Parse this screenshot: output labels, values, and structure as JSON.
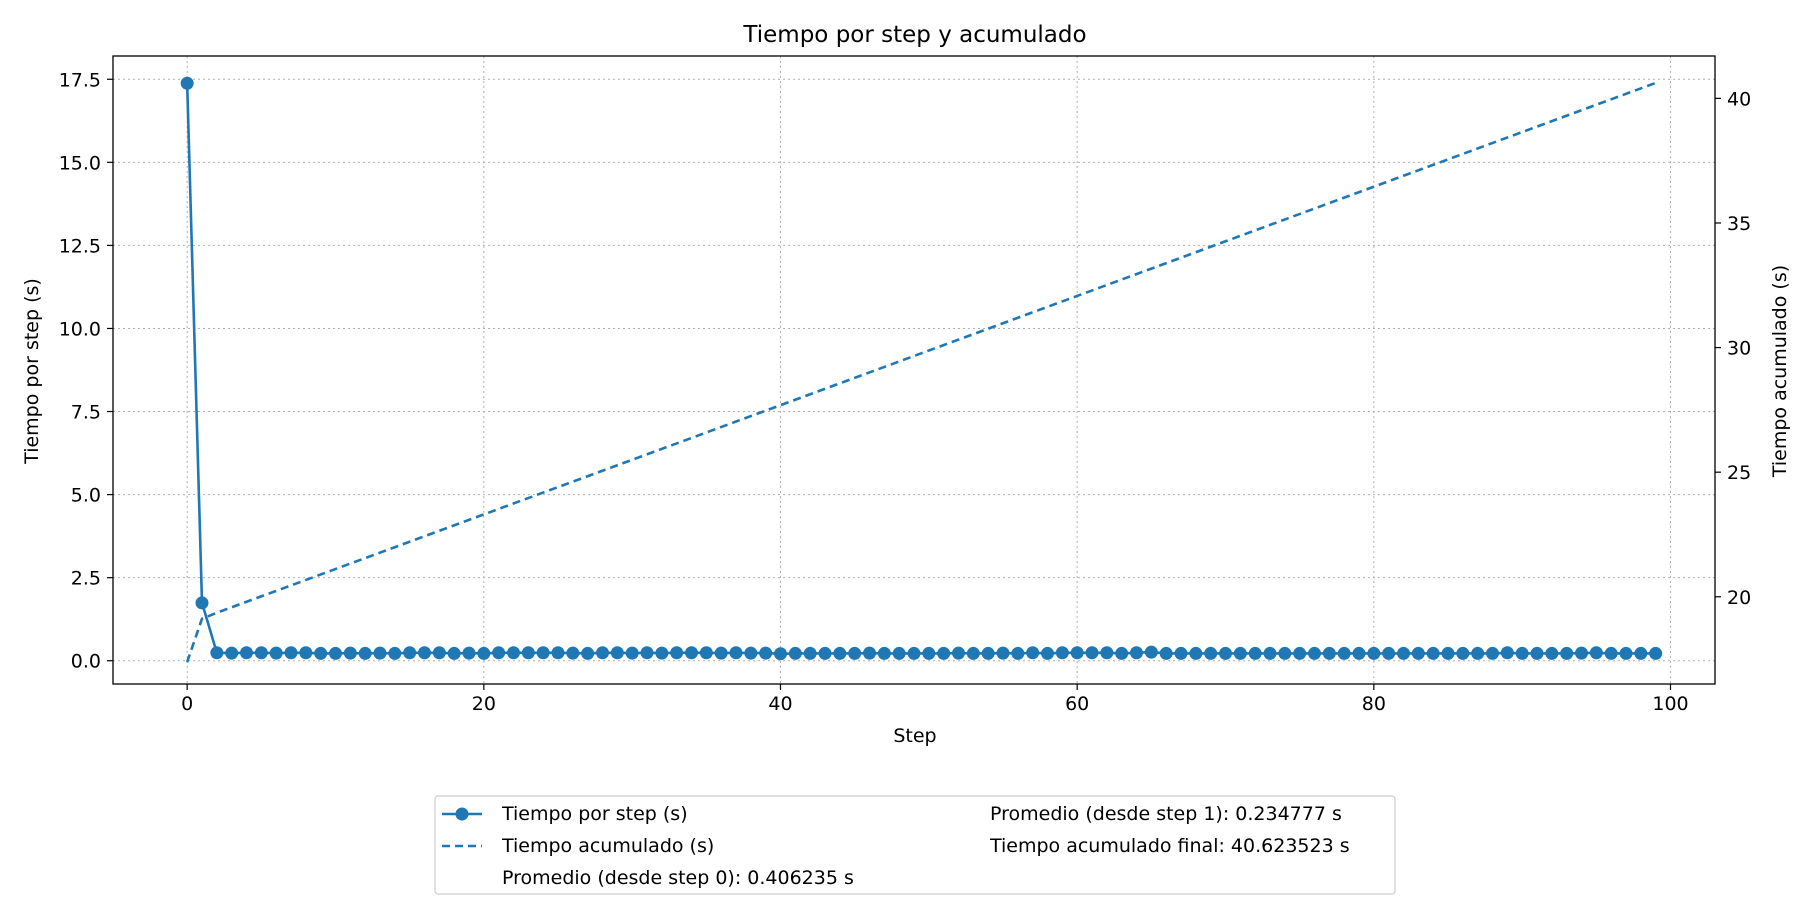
{
  "chart_data": {
    "type": "line",
    "title": "Tiempo por step y acumulado",
    "xlabel": "Step",
    "ylabel_left": "Tiempo por step (s)",
    "ylabel_right": "Tiempo acumulado (s)",
    "xlim": [
      -5,
      103
    ],
    "ylim_left": [
      -0.7,
      18.2
    ],
    "ylim_right": [
      16.5,
      41.7
    ],
    "xticks": [
      0,
      20,
      40,
      60,
      80,
      100
    ],
    "yticks_left": [
      0.0,
      2.5,
      5.0,
      7.5,
      10.0,
      12.5,
      15.0,
      17.5
    ],
    "ytick_labels_left": [
      "0.0",
      "2.5",
      "5.0",
      "7.5",
      "10.0",
      "12.5",
      "15.0",
      "17.5"
    ],
    "yticks_right": [
      20,
      25,
      30,
      35,
      40
    ],
    "grid": true,
    "color": "#1f77b4",
    "series": [
      {
        "name": "Tiempo por step (s)",
        "axis": "left",
        "style": "solid-marker",
        "x_start": 0,
        "x_step": 1,
        "values": [
          17.38,
          1.74,
          0.24,
          0.23,
          0.24,
          0.24,
          0.23,
          0.24,
          0.24,
          0.22,
          0.22,
          0.23,
          0.22,
          0.23,
          0.22,
          0.24,
          0.24,
          0.24,
          0.22,
          0.23,
          0.22,
          0.24,
          0.24,
          0.24,
          0.24,
          0.24,
          0.23,
          0.22,
          0.24,
          0.24,
          0.23,
          0.24,
          0.23,
          0.24,
          0.24,
          0.24,
          0.23,
          0.24,
          0.23,
          0.23,
          0.21,
          0.22,
          0.22,
          0.22,
          0.22,
          0.22,
          0.23,
          0.22,
          0.22,
          0.22,
          0.22,
          0.22,
          0.23,
          0.22,
          0.22,
          0.23,
          0.22,
          0.24,
          0.22,
          0.24,
          0.24,
          0.24,
          0.24,
          0.22,
          0.24,
          0.26,
          0.22,
          0.22,
          0.22,
          0.22,
          0.22,
          0.22,
          0.22,
          0.22,
          0.22,
          0.22,
          0.22,
          0.22,
          0.22,
          0.22,
          0.22,
          0.22,
          0.22,
          0.22,
          0.22,
          0.22,
          0.22,
          0.22,
          0.22,
          0.24,
          0.22,
          0.22,
          0.22,
          0.22,
          0.23,
          0.24,
          0.22,
          0.22,
          0.22,
          0.22
        ]
      },
      {
        "name": "Tiempo acumulado (s)",
        "axis": "right",
        "style": "dashed",
        "x": [
          0,
          1,
          2,
          99
        ],
        "values": [
          17.38,
          19.12,
          19.36,
          40.62
        ]
      }
    ],
    "legend": {
      "placement": "bottom-center",
      "col1": [
        {
          "marker": "line-dot",
          "text": "Tiempo por step (s)"
        },
        {
          "marker": "dashed",
          "text": "Tiempo acumulado (s)"
        },
        {
          "marker": "none",
          "text": "Promedio (desde step 0): 0.406235 s"
        }
      ],
      "col2": [
        {
          "marker": "none",
          "text": "Promedio (desde step 1): 0.234777 s"
        },
        {
          "marker": "none",
          "text": "Tiempo acumulado final: 40.623523 s"
        }
      ]
    }
  }
}
